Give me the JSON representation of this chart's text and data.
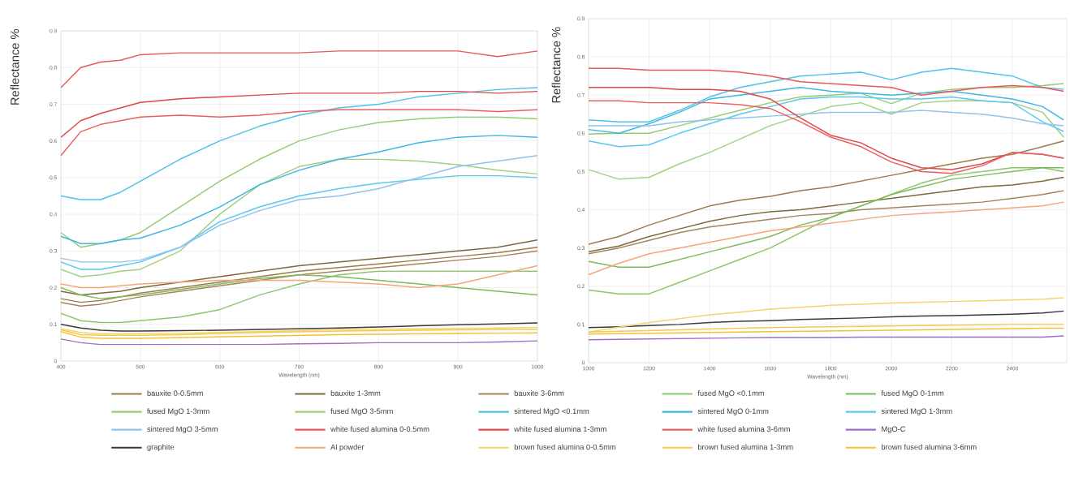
{
  "chart_data": [
    {
      "type": "line",
      "xlabel": "Wavelength (nm)",
      "ylabel": "Reflectance %",
      "grid": true,
      "legend": "bottom",
      "xlim": [
        400,
        1000
      ],
      "ylim": [
        0,
        0.9
      ],
      "xticks": [
        400,
        500,
        600,
        700,
        800,
        900,
        1000
      ],
      "yticks": [
        0,
        0.1,
        0.2,
        0.3,
        0.4,
        0.5,
        0.6,
        0.7,
        0.8,
        0.9
      ],
      "x": [
        400,
        425,
        450,
        475,
        500,
        550,
        600,
        650,
        700,
        750,
        800,
        850,
        900,
        950,
        1000
      ],
      "series": [
        {
          "name": "bauxite 0-0.5mm",
          "color": "#9c7a4c",
          "values": [
            0.17,
            0.16,
            0.165,
            0.175,
            0.185,
            0.2,
            0.215,
            0.23,
            0.245,
            0.255,
            0.265,
            0.275,
            0.285,
            0.295,
            0.31
          ]
        },
        {
          "name": "bauxite 1-3mm",
          "color": "#7d6a3c",
          "values": [
            0.19,
            0.18,
            0.185,
            0.19,
            0.2,
            0.215,
            0.23,
            0.245,
            0.26,
            0.27,
            0.28,
            0.29,
            0.3,
            0.31,
            0.33
          ]
        },
        {
          "name": "bauxite 3-6mm",
          "color": "#a5835a",
          "values": [
            0.16,
            0.15,
            0.155,
            0.165,
            0.175,
            0.19,
            0.205,
            0.22,
            0.235,
            0.245,
            0.255,
            0.265,
            0.275,
            0.285,
            0.3
          ]
        },
        {
          "name": "fused MgO <0.1mm",
          "color": "#8cc66b",
          "values": [
            0.13,
            0.11,
            0.105,
            0.105,
            0.11,
            0.12,
            0.14,
            0.18,
            0.21,
            0.235,
            0.245,
            0.245,
            0.245,
            0.245,
            0.245
          ]
        },
        {
          "name": "fused MgO 0-1mm",
          "color": "#7dbb5a",
          "values": [
            0.2,
            0.18,
            0.17,
            0.175,
            0.18,
            0.195,
            0.21,
            0.225,
            0.235,
            0.23,
            0.22,
            0.21,
            0.2,
            0.19,
            0.18
          ]
        },
        {
          "name": "fused MgO 1-3mm",
          "color": "#95cc72",
          "values": [
            0.35,
            0.31,
            0.32,
            0.33,
            0.35,
            0.42,
            0.49,
            0.55,
            0.6,
            0.63,
            0.65,
            0.66,
            0.665,
            0.665,
            0.66
          ]
        },
        {
          "name": "fused MgO 3-5mm",
          "color": "#a0d080",
          "values": [
            0.25,
            0.23,
            0.235,
            0.245,
            0.25,
            0.3,
            0.4,
            0.48,
            0.53,
            0.55,
            0.55,
            0.545,
            0.535,
            0.52,
            0.51
          ]
        },
        {
          "name": "sintered MgO <0.1mm",
          "color": "#4fc1e9",
          "values": [
            0.45,
            0.44,
            0.44,
            0.46,
            0.49,
            0.55,
            0.6,
            0.64,
            0.67,
            0.69,
            0.7,
            0.72,
            0.73,
            0.74,
            0.745
          ]
        },
        {
          "name": "sintered MgO 0-1mm",
          "color": "#3db7e4",
          "values": [
            0.34,
            0.32,
            0.32,
            0.33,
            0.335,
            0.37,
            0.42,
            0.48,
            0.52,
            0.55,
            0.57,
            0.595,
            0.61,
            0.615,
            0.61
          ]
        },
        {
          "name": "sintered MgO 1-3mm",
          "color": "#5ac8ee",
          "values": [
            0.27,
            0.25,
            0.25,
            0.26,
            0.27,
            0.31,
            0.38,
            0.42,
            0.45,
            0.47,
            0.485,
            0.495,
            0.505,
            0.505,
            0.5
          ]
        },
        {
          "name": "sintered MgO 3-5mm",
          "color": "#8fc3f0",
          "values": [
            0.28,
            0.27,
            0.27,
            0.27,
            0.275,
            0.31,
            0.37,
            0.41,
            0.44,
            0.45,
            0.47,
            0.5,
            0.53,
            0.545,
            0.56
          ]
        },
        {
          "name": "white fused alumina 0-0.5mm",
          "color": "#e8585a",
          "values": [
            0.745,
            0.8,
            0.815,
            0.82,
            0.835,
            0.84,
            0.84,
            0.84,
            0.84,
            0.845,
            0.845,
            0.845,
            0.845,
            0.83,
            0.845
          ]
        },
        {
          "name": "white fused alumina 1-3mm",
          "color": "#e04848",
          "values": [
            0.61,
            0.655,
            0.675,
            0.69,
            0.705,
            0.715,
            0.72,
            0.725,
            0.73,
            0.73,
            0.73,
            0.735,
            0.735,
            0.73,
            0.735
          ]
        },
        {
          "name": "white fused alumina 3-6mm",
          "color": "#ea6060",
          "values": [
            0.56,
            0.625,
            0.645,
            0.655,
            0.665,
            0.67,
            0.665,
            0.67,
            0.68,
            0.685,
            0.685,
            0.685,
            0.685,
            0.68,
            0.685
          ]
        },
        {
          "name": "MgO-C",
          "color": "#9e6fc6",
          "values": [
            0.06,
            0.05,
            0.045,
            0.045,
            0.045,
            0.045,
            0.045,
            0.045,
            0.047,
            0.048,
            0.05,
            0.05,
            0.05,
            0.052,
            0.055
          ]
        },
        {
          "name": "graphite",
          "color": "#3a3a3a",
          "values": [
            0.1,
            0.09,
            0.084,
            0.082,
            0.082,
            0.083,
            0.084,
            0.086,
            0.088,
            0.09,
            0.093,
            0.096,
            0.099,
            0.101,
            0.104
          ]
        },
        {
          "name": "Al powder",
          "color": "#f4a57a",
          "values": [
            0.21,
            0.2,
            0.2,
            0.205,
            0.21,
            0.215,
            0.22,
            0.22,
            0.22,
            0.215,
            0.21,
            0.2,
            0.21,
            0.235,
            0.26
          ]
        },
        {
          "name": "brown fused alumina 0-0.5mm",
          "color": "#f7d36b",
          "values": [
            0.088,
            0.078,
            0.074,
            0.074,
            0.075,
            0.076,
            0.078,
            0.08,
            0.083,
            0.086,
            0.087,
            0.088,
            0.089,
            0.09,
            0.092
          ]
        },
        {
          "name": "brown fused alumina 1-3mm",
          "color": "#f5c94e",
          "values": [
            0.085,
            0.072,
            0.07,
            0.07,
            0.07,
            0.072,
            0.075,
            0.078,
            0.08,
            0.082,
            0.083,
            0.084,
            0.085,
            0.086,
            0.087
          ]
        },
        {
          "name": "brown fused alumina 3-6mm",
          "color": "#f2c335",
          "values": [
            0.08,
            0.065,
            0.062,
            0.062,
            0.062,
            0.064,
            0.066,
            0.068,
            0.07,
            0.072,
            0.073,
            0.074,
            0.075,
            0.076,
            0.077
          ]
        }
      ]
    },
    {
      "type": "line",
      "xlabel": "Wavelength (nm)",
      "ylabel": "Reflectance %",
      "grid": true,
      "xlim": [
        1000,
        2580
      ],
      "ylim": [
        0,
        0.9
      ],
      "xticks": [
        1000,
        1200,
        1400,
        1600,
        1800,
        2000,
        2200,
        2400
      ],
      "yticks": [
        0,
        0.1,
        0.2,
        0.3,
        0.4,
        0.5,
        0.6,
        0.7,
        0.8,
        0.9
      ],
      "x": [
        1000,
        1100,
        1200,
        1300,
        1400,
        1500,
        1600,
        1700,
        1800,
        1900,
        2000,
        2100,
        2200,
        2300,
        2400,
        2500,
        2570
      ],
      "series": [
        {
          "color": "#9c7a4c",
          "values": [
            0.31,
            0.33,
            0.36,
            0.385,
            0.41,
            0.425,
            0.435,
            0.45,
            0.46,
            0.475,
            0.49,
            0.505,
            0.52,
            0.535,
            0.545,
            0.565,
            0.58
          ]
        },
        {
          "color": "#7d6a3c",
          "values": [
            0.29,
            0.305,
            0.33,
            0.35,
            0.37,
            0.385,
            0.395,
            0.4,
            0.41,
            0.42,
            0.43,
            0.44,
            0.45,
            0.46,
            0.465,
            0.475,
            0.485
          ]
        },
        {
          "color": "#a5835a",
          "values": [
            0.285,
            0.3,
            0.32,
            0.34,
            0.355,
            0.365,
            0.375,
            0.385,
            0.39,
            0.4,
            0.405,
            0.41,
            0.415,
            0.42,
            0.43,
            0.44,
            0.45
          ]
        },
        {
          "color": "#8cc66b",
          "values": [
            0.19,
            0.18,
            0.18,
            0.21,
            0.24,
            0.27,
            0.3,
            0.34,
            0.38,
            0.41,
            0.44,
            0.47,
            0.49,
            0.5,
            0.51,
            0.51,
            0.5
          ]
        },
        {
          "color": "#7dbb5a",
          "values": [
            0.265,
            0.25,
            0.25,
            0.27,
            0.29,
            0.31,
            0.33,
            0.36,
            0.38,
            0.41,
            0.44,
            0.46,
            0.48,
            0.49,
            0.5,
            0.51,
            0.51
          ]
        },
        {
          "color": "#95cc72",
          "values": [
            0.598,
            0.6,
            0.6,
            0.62,
            0.64,
            0.66,
            0.68,
            0.695,
            0.7,
            0.705,
            0.678,
            0.705,
            0.715,
            0.72,
            0.72,
            0.725,
            0.73
          ]
        },
        {
          "color": "#a0d080",
          "values": [
            0.505,
            0.48,
            0.485,
            0.52,
            0.55,
            0.585,
            0.62,
            0.645,
            0.67,
            0.68,
            0.65,
            0.68,
            0.685,
            0.685,
            0.68,
            0.655,
            0.59
          ]
        },
        {
          "color": "#4fc1e9",
          "values": [
            0.635,
            0.63,
            0.63,
            0.66,
            0.695,
            0.72,
            0.735,
            0.75,
            0.755,
            0.76,
            0.74,
            0.76,
            0.77,
            0.76,
            0.75,
            0.72,
            0.715
          ]
        },
        {
          "color": "#3db7e4",
          "values": [
            0.61,
            0.6,
            0.625,
            0.655,
            0.69,
            0.7,
            0.71,
            0.72,
            0.71,
            0.705,
            0.7,
            0.705,
            0.71,
            0.7,
            0.69,
            0.67,
            0.635
          ]
        },
        {
          "color": "#5ac8ee",
          "values": [
            0.58,
            0.565,
            0.57,
            0.6,
            0.625,
            0.65,
            0.67,
            0.69,
            0.695,
            0.695,
            0.69,
            0.69,
            0.695,
            0.685,
            0.68,
            0.63,
            0.605
          ]
        },
        {
          "color": "#8fc3f0",
          "values": [
            0.62,
            0.62,
            0.62,
            0.63,
            0.635,
            0.64,
            0.645,
            0.65,
            0.655,
            0.655,
            0.655,
            0.66,
            0.655,
            0.65,
            0.64,
            0.625,
            0.62
          ]
        },
        {
          "color": "#e8585a",
          "values": [
            0.77,
            0.77,
            0.765,
            0.765,
            0.765,
            0.76,
            0.75,
            0.735,
            0.73,
            0.725,
            0.72,
            0.7,
            0.71,
            0.72,
            0.725,
            0.72,
            0.71
          ]
        },
        {
          "color": "#e04848",
          "values": [
            0.72,
            0.72,
            0.72,
            0.715,
            0.715,
            0.71,
            0.69,
            0.64,
            0.595,
            0.575,
            0.535,
            0.51,
            0.505,
            0.52,
            0.55,
            0.545,
            0.535
          ]
        },
        {
          "color": "#ea6060",
          "values": [
            0.685,
            0.685,
            0.68,
            0.68,
            0.68,
            0.675,
            0.665,
            0.63,
            0.59,
            0.565,
            0.525,
            0.5,
            0.495,
            0.515,
            0.55,
            0.545,
            0.535
          ]
        },
        {
          "color": "#9e6fc6",
          "values": [
            0.06,
            0.061,
            0.062,
            0.063,
            0.064,
            0.065,
            0.066,
            0.066,
            0.066,
            0.067,
            0.067,
            0.067,
            0.067,
            0.067,
            0.067,
            0.067,
            0.07
          ]
        },
        {
          "color": "#3a3a3a",
          "values": [
            0.092,
            0.094,
            0.097,
            0.1,
            0.105,
            0.108,
            0.11,
            0.113,
            0.115,
            0.117,
            0.12,
            0.122,
            0.123,
            0.125,
            0.127,
            0.13,
            0.135
          ]
        },
        {
          "color": "#f4a57a",
          "values": [
            0.23,
            0.26,
            0.285,
            0.3,
            0.315,
            0.33,
            0.345,
            0.355,
            0.365,
            0.375,
            0.385,
            0.39,
            0.395,
            0.4,
            0.405,
            0.41,
            0.42
          ]
        },
        {
          "color": "#f7d36b",
          "values": [
            0.08,
            0.093,
            0.105,
            0.115,
            0.125,
            0.132,
            0.14,
            0.145,
            0.15,
            0.153,
            0.156,
            0.158,
            0.16,
            0.162,
            0.164,
            0.166,
            0.17
          ]
        },
        {
          "color": "#f5c94e",
          "values": [
            0.08,
            0.082,
            0.084,
            0.086,
            0.088,
            0.09,
            0.092,
            0.093,
            0.094,
            0.095,
            0.096,
            0.097,
            0.098,
            0.099,
            0.1,
            0.1,
            0.1
          ]
        },
        {
          "color": "#f2c335",
          "values": [
            0.075,
            0.076,
            0.077,
            0.078,
            0.079,
            0.08,
            0.081,
            0.082,
            0.083,
            0.084,
            0.085,
            0.086,
            0.087,
            0.088,
            0.089,
            0.09,
            0.09
          ]
        }
      ]
    }
  ]
}
